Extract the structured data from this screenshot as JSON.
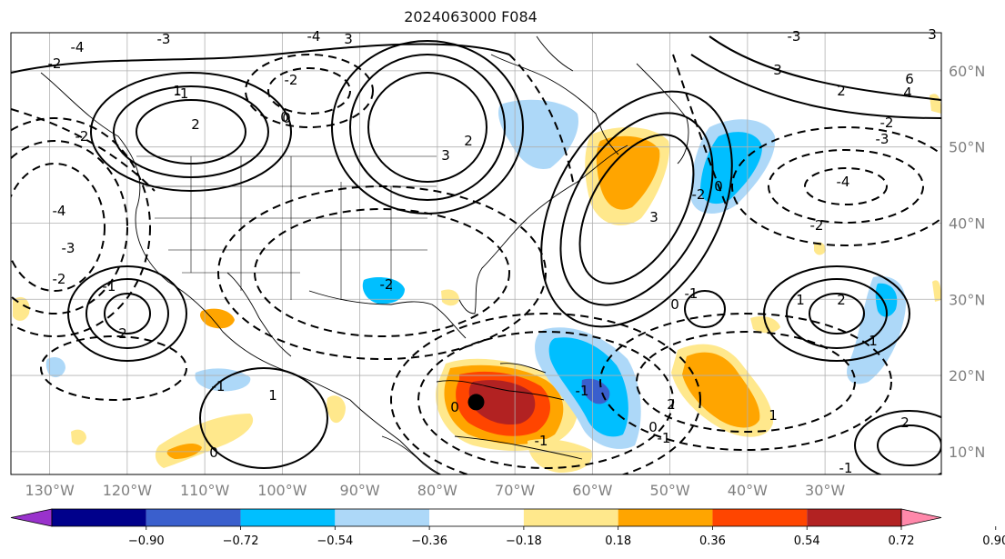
{
  "title": "2024063000 F084",
  "map": {
    "lon_ticks": [
      "130°W",
      "120°W",
      "110°W",
      "100°W",
      "90°W",
      "80°W",
      "70°W",
      "60°W",
      "50°W",
      "40°W",
      "30°W"
    ],
    "lat_ticks": [
      "60°N",
      "50°N",
      "40°N",
      "30°N",
      "20°N",
      "10°N"
    ],
    "extent": {
      "lon": [
        -135,
        -15
      ],
      "lat": [
        7,
        65
      ]
    },
    "marker": {
      "lon": -75,
      "lat": 16.5,
      "color": "#000000"
    },
    "contour_labels": [
      "-4",
      "-3",
      "-2",
      "-1",
      "0",
      "1",
      "2",
      "3",
      "4",
      "6"
    ]
  },
  "colorbar": {
    "ticks": [
      "−0.90",
      "−0.72",
      "−0.54",
      "−0.36",
      "−0.18",
      "0.18",
      "0.36",
      "0.54",
      "0.72",
      "0.90"
    ],
    "colors": [
      "#9932cc",
      "#00008b",
      "#3a5fcd",
      "#00bfff",
      "#add8f8",
      "#ffffff",
      "#ffe88c",
      "#ffa500",
      "#ff4500",
      "#b22222",
      "#ff88aa"
    ]
  }
}
